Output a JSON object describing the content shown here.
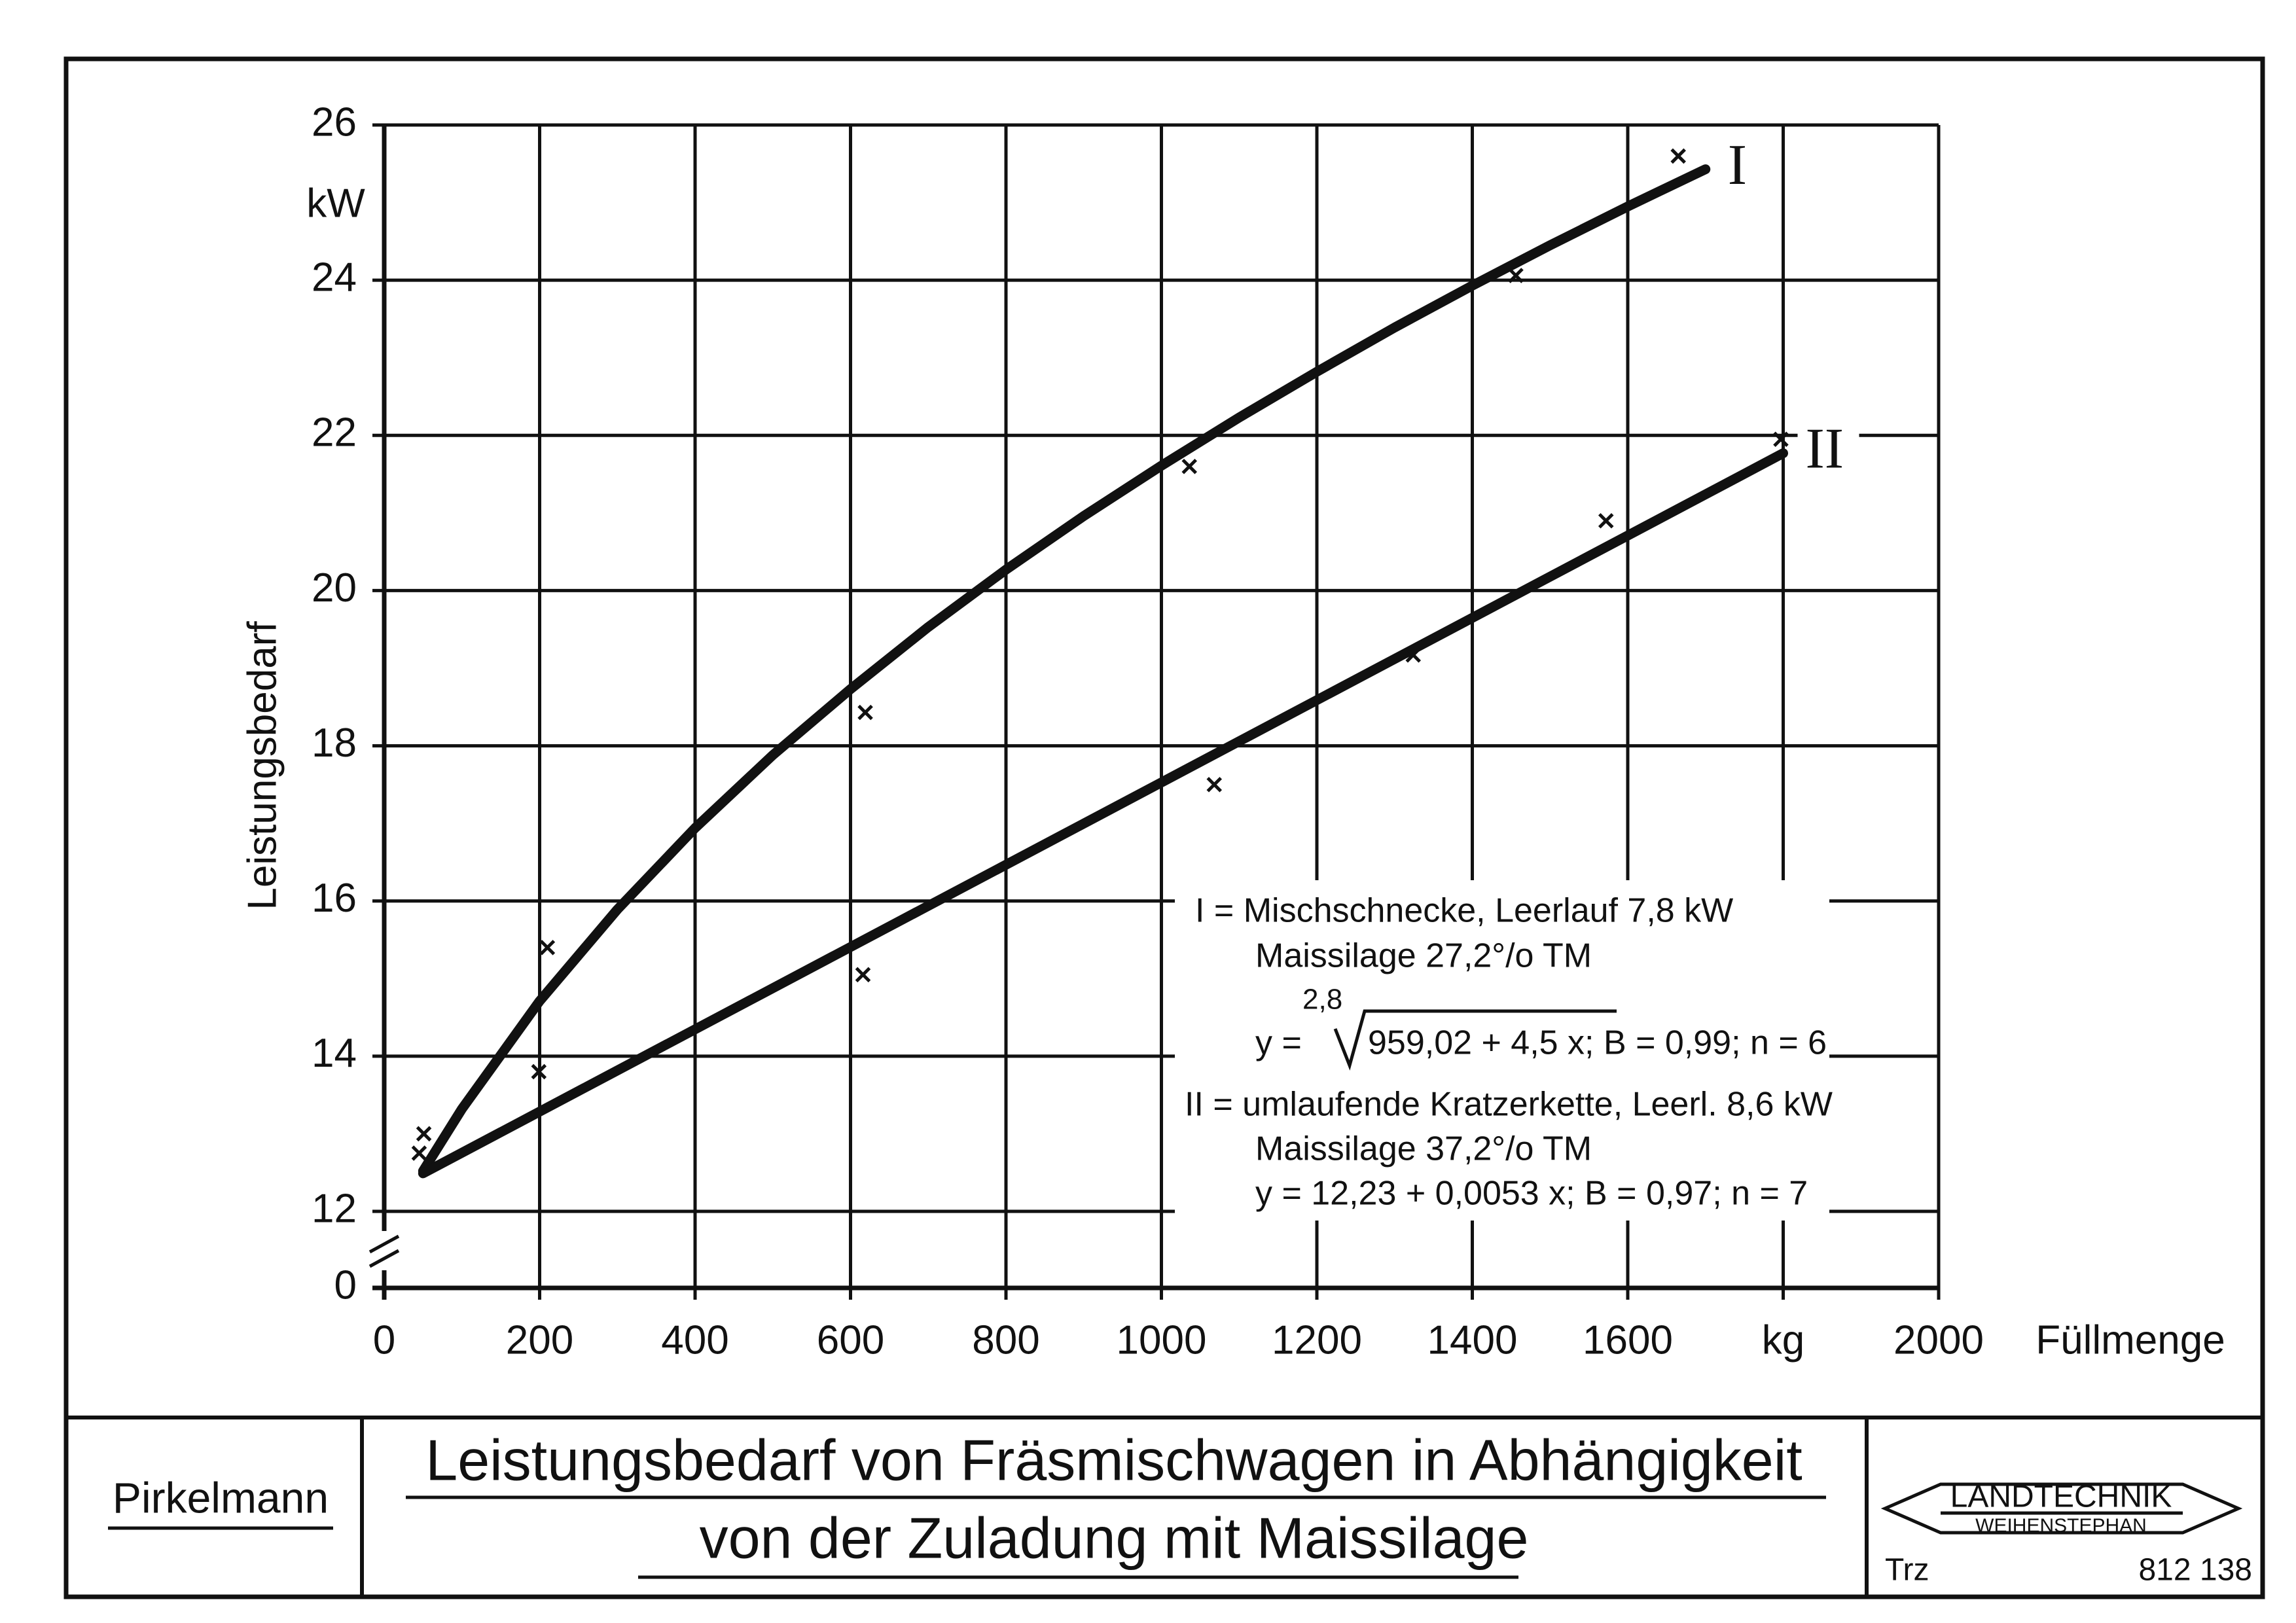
{
  "chart_data": {
    "type": "scatter",
    "y_label": "Leistungsbedarf",
    "y_unit": "kW",
    "x_label": "Füllmenge",
    "xlim": [
      0,
      2000
    ],
    "xticks": [
      0,
      200,
      400,
      600,
      800,
      1000,
      1200,
      1400,
      1600,
      {
        "value": 1800,
        "label": "kg"
      },
      2000
    ],
    "ylim": [
      12,
      26
    ],
    "yticks": [
      0,
      12,
      14,
      16,
      18,
      20,
      22,
      24,
      26
    ],
    "y_break": true,
    "grid": true,
    "series": [
      {
        "name": "I",
        "color": "#111111",
        "x": [
          51,
          210,
          619,
          1036,
          1456,
          1665
        ],
        "values": [
          13.0,
          15.4,
          18.43,
          21.6,
          24.06,
          25.6
        ],
        "curve": {
          "x": [
            50,
            100,
            200,
            300,
            400,
            500,
            600,
            700,
            800,
            900,
            1000,
            1100,
            1200,
            1300,
            1400,
            1500,
            1600,
            1700
          ],
          "values": [
            12.52,
            13.32,
            14.71,
            15.89,
            16.94,
            17.88,
            18.73,
            19.53,
            20.27,
            20.96,
            21.61,
            22.23,
            22.82,
            23.39,
            23.93,
            24.45,
            24.95,
            25.43
          ]
        }
      },
      {
        "name": "II",
        "color": "#111111",
        "x": [
          45,
          199,
          616,
          1068,
          1324,
          1572,
          1797
        ],
        "values": [
          12.75,
          13.8,
          15.05,
          17.5,
          19.17,
          20.9,
          21.95
        ],
        "curve": {
          "x": [
            50,
            1800
          ],
          "values": [
            12.49,
            21.77
          ]
        }
      }
    ],
    "note_I": [
      "I = Mischschnecke, Leerlauf 7,8 kW",
      "Maissilage 27,2°/o TM"
    ],
    "formula_I": {
      "lhs": "y =",
      "root_index": "2,8",
      "radicand": "959,02 + 4,5 x",
      "rest": "; B = 0,99; n = 6"
    },
    "note_II": [
      "II = umlaufende Kratzerkette, Leerl. 8,6 kW",
      "Maissilage 37,2°/o TM",
      "y = 12,23 + 0,0053 x; B = 0,97; n = 7"
    ]
  },
  "footer": {
    "author": "Pirkelmann",
    "title": [
      "Leistungsbedarf von Fräsmischwagen in Abhängigkeit",
      "von der Zuladung mit Maissilage"
    ],
    "logo": {
      "name": "LANDTECHNIK",
      "place": "WEIHENSTEPHAN"
    },
    "drawn_by": "Trz",
    "number": "812 138"
  }
}
